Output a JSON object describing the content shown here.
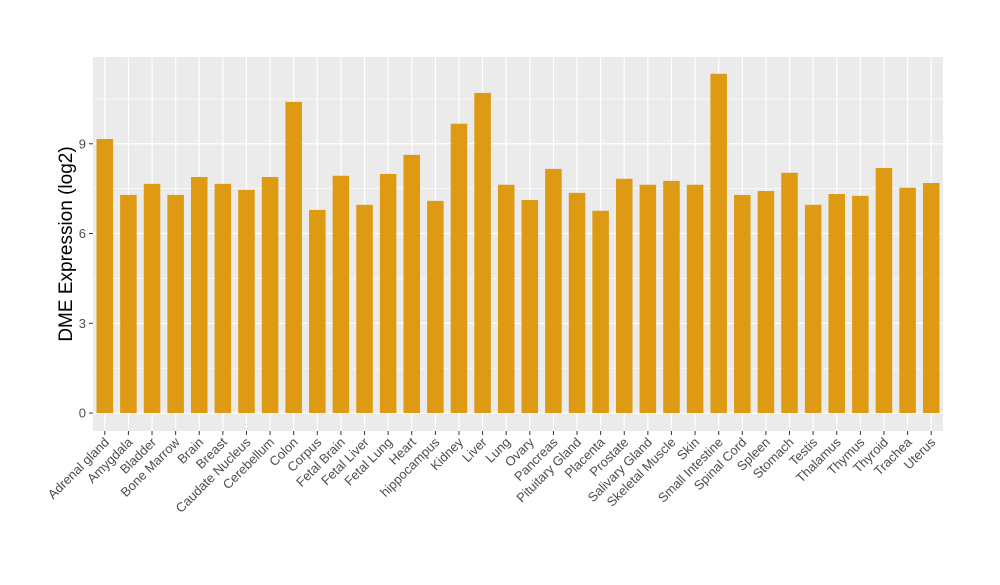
{
  "chart_data": {
    "type": "bar",
    "title": "",
    "xlabel": "",
    "ylabel": "DME Expression (log2)",
    "ylim": [
      -0.6,
      11.9
    ],
    "yticks": [
      0,
      3,
      6,
      9
    ],
    "grid": true,
    "bar_color": "#DE9A12",
    "panel_color": "#EBEBEB",
    "categories": [
      "Adrenal gland",
      "Amygdala",
      "Bladder",
      "Bone Marrow",
      "Brain",
      "Breast",
      "Caudate Nucleus",
      "Cerebellum",
      "Colon",
      "Corpus",
      "Fetal Brain",
      "Fetal Liver",
      "Fetal Lung",
      "Heart",
      "hippocampus",
      "Kidney",
      "Liver",
      "Lung",
      "Ovary",
      "Pancreas",
      "Pituitary Gland",
      "Placenta",
      "Prostate",
      "Salivary Gland",
      "Skeletal Muscle",
      "Skin",
      "Small Intestine",
      "Spinal Cord",
      "Spleen",
      "Stomach",
      "Testis",
      "Thalamus",
      "Thymus",
      "Thyroid",
      "Trachea",
      "Uterus"
    ],
    "values": [
      9.16,
      7.29,
      7.66,
      7.29,
      7.89,
      7.66,
      7.46,
      7.89,
      10.4,
      6.79,
      7.93,
      6.96,
      7.99,
      8.63,
      7.09,
      9.67,
      10.7,
      7.63,
      7.12,
      8.16,
      7.36,
      6.76,
      7.83,
      7.63,
      7.76,
      7.63,
      11.34,
      7.29,
      7.42,
      8.03,
      6.96,
      7.32,
      7.26,
      8.19,
      7.53,
      7.69
    ]
  }
}
